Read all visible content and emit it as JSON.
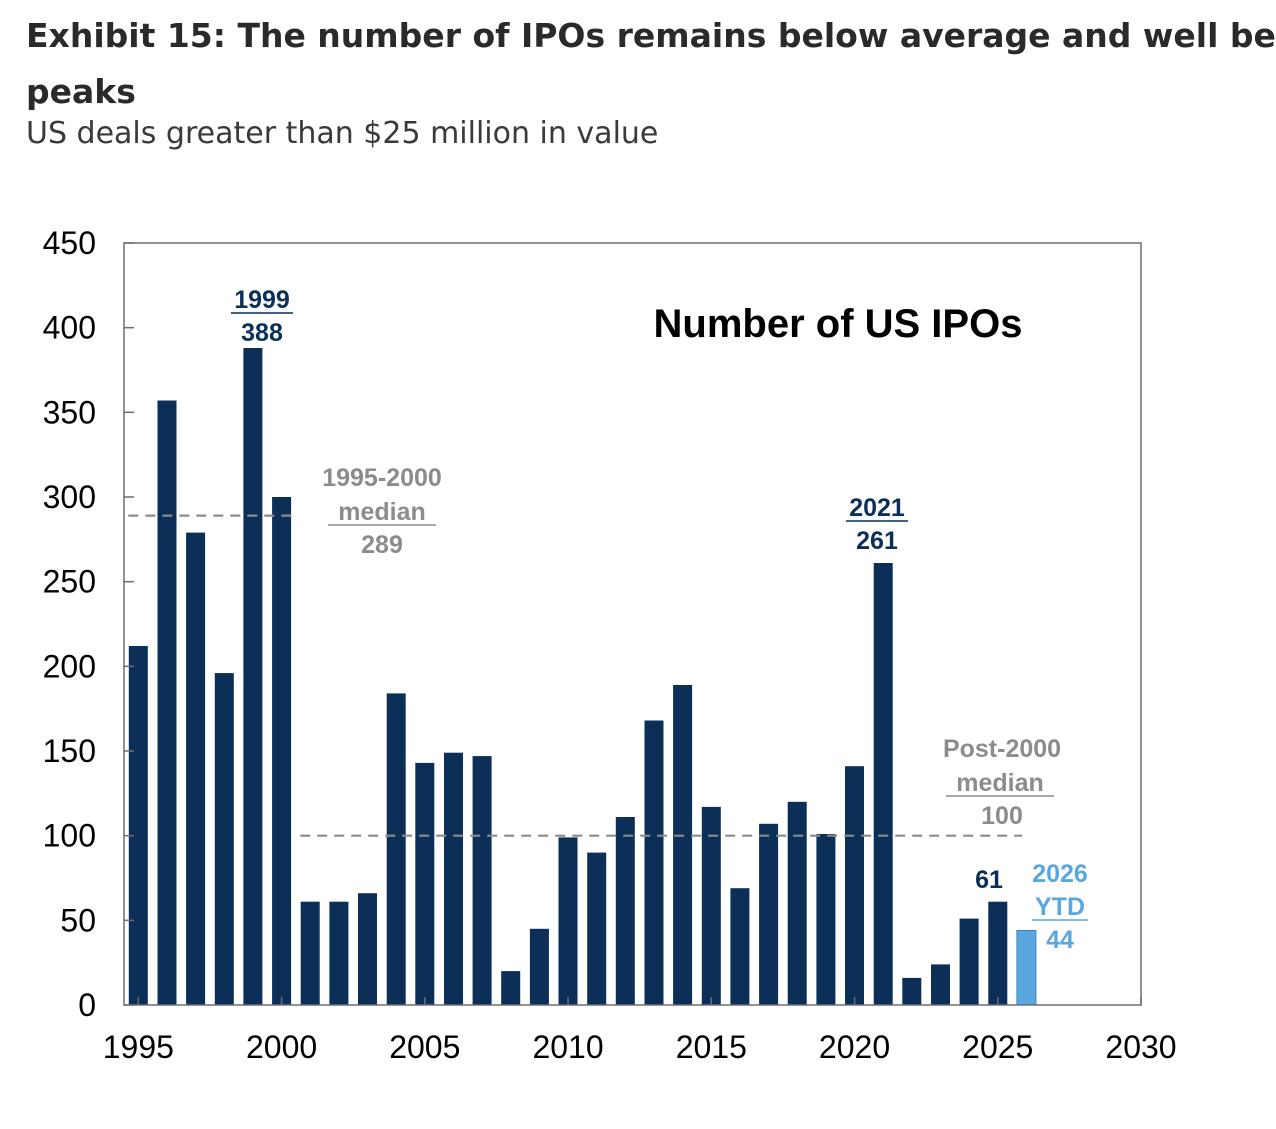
{
  "header": {
    "title_line1": "Exhibit 15: The number of IPOs remains below average and well be",
    "title_line2": "peaks",
    "subtitle": "US deals greater than $25 million in value"
  },
  "chart_data": {
    "type": "bar",
    "inner_title": "Number of US IPOs",
    "xlabel": "",
    "ylabel": "",
    "ylim": [
      0,
      450
    ],
    "yticks": [
      0,
      50,
      100,
      150,
      200,
      250,
      300,
      350,
      400,
      450
    ],
    "xlim": [
      1994.5,
      2030
    ],
    "xticks": [
      1995,
      2000,
      2005,
      2010,
      2015,
      2020,
      2025,
      2030
    ],
    "grid": false,
    "legend": "none",
    "bar_color": "#0b2f57",
    "highlight_color": "#5aa7e0",
    "annotation_color": "#0b2f57",
    "median_color": "#8c8c8c",
    "series": [
      {
        "x": [
          1995,
          1996,
          1997,
          1998,
          1999,
          2000,
          2001,
          2002,
          2003,
          2004,
          2005,
          2006,
          2007,
          2008,
          2009,
          2010,
          2011,
          2012,
          2013,
          2014,
          2015,
          2016,
          2017,
          2018,
          2019,
          2020,
          2021,
          2022,
          2023,
          2024,
          2025
        ],
        "values": [
          212,
          357,
          279,
          196,
          388,
          300,
          61,
          61,
          66,
          184,
          143,
          149,
          147,
          20,
          45,
          99,
          90,
          111,
          168,
          189,
          117,
          69,
          107,
          120,
          101,
          141,
          261,
          16,
          24,
          51,
          61
        ]
      },
      {
        "x": [
          2026
        ],
        "values": [
          44
        ]
      }
    ],
    "medians": [
      {
        "from": 1995,
        "to": 2000,
        "value": 289
      },
      {
        "from": 2001,
        "to": 2025.5,
        "value": 100
      }
    ],
    "annotations": [
      {
        "year_label": "1999",
        "value_label": "388"
      },
      {
        "year_label": "2021",
        "value_label": "261"
      },
      {
        "value_label": "61"
      },
      {
        "line1": "2026",
        "line2": "YTD",
        "line3": "44"
      },
      {
        "line1": "1995-2000",
        "line2": "median",
        "line3": "289"
      },
      {
        "line1": "Post-2000",
        "line2": "median",
        "line3": "100"
      }
    ]
  }
}
